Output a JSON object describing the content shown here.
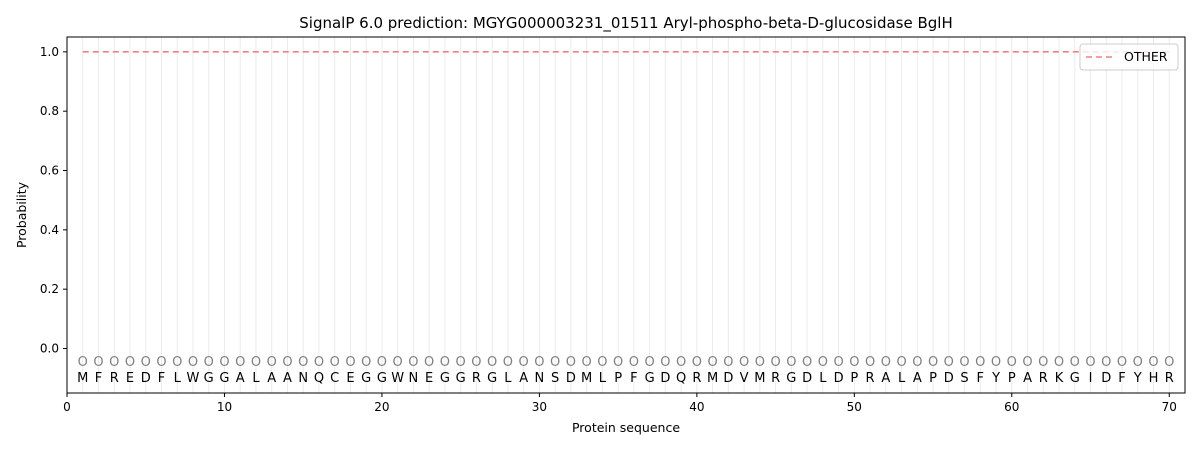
{
  "chart_data": {
    "type": "line",
    "title": "SignalP 6.0 prediction: MGYG000003231_01511 Aryl-phospho-beta-D-glucosidase BglH",
    "xlabel": "Protein sequence",
    "ylabel": "Probability",
    "xlim": [
      0,
      71
    ],
    "ylim": [
      -0.15,
      1.05
    ],
    "x_ticks": [
      0,
      10,
      20,
      30,
      40,
      50,
      60,
      70
    ],
    "y_ticks": [
      0.0,
      0.2,
      0.4,
      0.6,
      0.8,
      1.0
    ],
    "y_tick_labels": [
      "0.0",
      "0.2",
      "0.4",
      "0.6",
      "0.8",
      "1.0"
    ],
    "sequence": [
      "M",
      "F",
      "R",
      "E",
      "D",
      "F",
      "L",
      "W",
      "G",
      "G",
      "A",
      "L",
      "A",
      "A",
      "N",
      "Q",
      "C",
      "E",
      "G",
      "G",
      "W",
      "N",
      "E",
      "G",
      "G",
      "R",
      "G",
      "L",
      "A",
      "N",
      "S",
      "D",
      "M",
      "L",
      "P",
      "F",
      "G",
      "D",
      "Q",
      "R",
      "M",
      "D",
      "V",
      "M",
      "R",
      "G",
      "D",
      "L",
      "D",
      "P",
      "R",
      "A",
      "L",
      "A",
      "P",
      "D",
      "S",
      "F",
      "Y",
      "P",
      "A",
      "R",
      "K",
      "G",
      "I",
      "D",
      "F",
      "Y",
      "H",
      "R"
    ],
    "region_labels": [
      "O",
      "O",
      "O",
      "O",
      "O",
      "O",
      "O",
      "O",
      "O",
      "O",
      "O",
      "O",
      "O",
      "O",
      "O",
      "O",
      "O",
      "O",
      "O",
      "O",
      "O",
      "O",
      "O",
      "O",
      "O",
      "O",
      "O",
      "O",
      "O",
      "O",
      "O",
      "O",
      "O",
      "O",
      "O",
      "O",
      "O",
      "O",
      "O",
      "O",
      "O",
      "O",
      "O",
      "O",
      "O",
      "O",
      "O",
      "O",
      "O",
      "O",
      "O",
      "O",
      "O",
      "O",
      "O",
      "O",
      "O",
      "O",
      "O",
      "O",
      "O",
      "O",
      "O",
      "O",
      "O",
      "O",
      "O",
      "O",
      "O",
      "O"
    ],
    "series": [
      {
        "name": "OTHER",
        "color": "#f08080",
        "style": "dashed",
        "x_range": [
          1,
          70
        ],
        "value": 1.0
      }
    ],
    "grid": "vertical-per-residue",
    "legend_position": "top-right"
  }
}
